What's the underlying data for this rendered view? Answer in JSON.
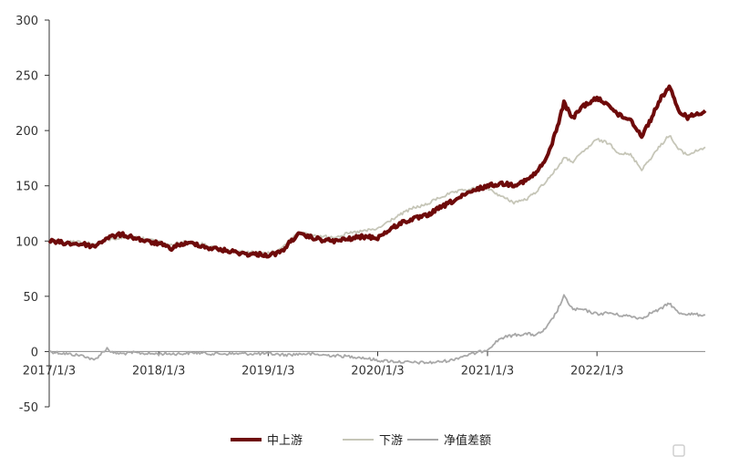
{
  "chart_data": {
    "type": "line",
    "title": "",
    "xlabel": "",
    "ylabel": "",
    "ylim": [
      -50,
      300
    ],
    "yticks": [
      -50,
      0,
      50,
      100,
      150,
      200,
      250,
      300
    ],
    "ytick_labels": [
      "-50",
      "0",
      "50",
      "100",
      "150",
      "200",
      "250",
      "300"
    ],
    "xlim": [
      "2017/1/3",
      "2022/12/30"
    ],
    "xticks": [
      "2017/1/3",
      "2018/1/3",
      "2019/1/3",
      "2020/1/3",
      "2021/1/3",
      "2022/1/3"
    ],
    "grid": false,
    "legend_position": "bottom",
    "series": [
      {
        "name": "中上游",
        "color": "#6e0a0a",
        "width": 4,
        "x": [
          "2017/1/3",
          "2017/3/1",
          "2017/5/1",
          "2017/6/1",
          "2017/7/15",
          "2017/9/1",
          "2017/10/15",
          "2017/12/1",
          "2018/1/3",
          "2018/2/10",
          "2018/3/15",
          "2018/5/1",
          "2018/6/15",
          "2018/8/1",
          "2018/9/15",
          "2018/11/1",
          "2018/12/15",
          "2019/1/3",
          "2019/2/15",
          "2019/4/10",
          "2019/5/15",
          "2019/7/1",
          "2019/8/15",
          "2019/10/1",
          "2019/11/15",
          "2020/1/3",
          "2020/2/10",
          "2020/3/25",
          "2020/5/1",
          "2020/6/15",
          "2020/7/15",
          "2020/9/1",
          "2020/10/15",
          "2020/12/1",
          "2021/1/3",
          "2021/2/20",
          "2021/4/1",
          "2021/5/15",
          "2021/6/15",
          "2021/7/20",
          "2021/8/20",
          "2021/9/15",
          "2021/10/15",
          "2021/11/15",
          "2022/1/3",
          "2022/2/15",
          "2022/3/15",
          "2022/4/25",
          "2022/6/1",
          "2022/7/1",
          "2022/8/1",
          "2022/9/1",
          "2022/10/1",
          "2022/11/1",
          "2022/12/30"
        ],
        "y": [
          100,
          98,
          97,
          95,
          103,
          106,
          103,
          99,
          98,
          93,
          97,
          98,
          94,
          92,
          90,
          88,
          88,
          87,
          90,
          106,
          104,
          101,
          100,
          102,
          104,
          103,
          110,
          117,
          120,
          123,
          128,
          135,
          141,
          147,
          150,
          152,
          151,
          155,
          162,
          175,
          200,
          225,
          211,
          222,
          229,
          223,
          214,
          210,
          195,
          210,
          228,
          240,
          218,
          212,
          218
        ]
      },
      {
        "name": "下游",
        "color": "#c6c6b8",
        "width": 1.8,
        "x": [
          "2017/1/3",
          "2017/3/1",
          "2017/5/1",
          "2017/6/1",
          "2017/7/15",
          "2017/9/1",
          "2017/10/15",
          "2017/12/1",
          "2018/1/3",
          "2018/2/10",
          "2018/3/15",
          "2018/5/1",
          "2018/6/15",
          "2018/8/1",
          "2018/9/15",
          "2018/11/1",
          "2018/12/15",
          "2019/1/3",
          "2019/2/15",
          "2019/4/10",
          "2019/5/15",
          "2019/7/1",
          "2019/8/15",
          "2019/10/1",
          "2019/11/15",
          "2020/1/3",
          "2020/2/10",
          "2020/3/25",
          "2020/5/1",
          "2020/6/15",
          "2020/7/15",
          "2020/9/1",
          "2020/10/15",
          "2020/12/1",
          "2021/1/3",
          "2021/2/20",
          "2021/4/1",
          "2021/5/15",
          "2021/6/15",
          "2021/7/20",
          "2021/8/20",
          "2021/9/15",
          "2021/10/15",
          "2021/11/15",
          "2022/1/3",
          "2022/2/15",
          "2022/3/15",
          "2022/4/25",
          "2022/6/1",
          "2022/7/1",
          "2022/8/1",
          "2022/9/1",
          "2022/10/1",
          "2022/11/1",
          "2022/12/30"
        ],
        "y": [
          100,
          99,
          99,
          97,
          101,
          103,
          104,
          101,
          100,
          96,
          99,
          99,
          96,
          93,
          91,
          90,
          89,
          89,
          93,
          108,
          106,
          104,
          104,
          107,
          109,
          111,
          118,
          125,
          130,
          133,
          138,
          143,
          146,
          148,
          148,
          140,
          135,
          138,
          145,
          155,
          165,
          175,
          172,
          180,
          192,
          188,
          180,
          178,
          165,
          175,
          186,
          196,
          183,
          178,
          185
        ]
      },
      {
        "name": "净值差额",
        "color": "#a8a8a8",
        "width": 1.8,
        "x": [
          "2017/1/3",
          "2017/3/1",
          "2017/5/1",
          "2017/6/1",
          "2017/7/15",
          "2017/8/1",
          "2017/9/1",
          "2017/10/15",
          "2017/12/1",
          "2018/1/3",
          "2018/3/15",
          "2018/5/1",
          "2018/7/1",
          "2018/9/1",
          "2018/11/1",
          "2019/1/3",
          "2019/3/1",
          "2019/5/1",
          "2019/7/1",
          "2019/9/1",
          "2019/11/1",
          "2020/1/3",
          "2020/3/1",
          "2020/5/1",
          "2020/7/1",
          "2020/9/1",
          "2020/10/15",
          "2020/12/1",
          "2021/1/3",
          "2021/2/15",
          "2021/4/1",
          "2021/5/15",
          "2021/6/15",
          "2021/7/15",
          "2021/8/20",
          "2021/9/15",
          "2021/10/15",
          "2021/11/15",
          "2022/1/3",
          "2022/2/15",
          "2022/3/15",
          "2022/4/25",
          "2022/6/1",
          "2022/7/1",
          "2022/8/1",
          "2022/9/1",
          "2022/10/1",
          "2022/11/1",
          "2022/12/30"
        ],
        "y": [
          0,
          -2,
          -4,
          -8,
          3,
          -1,
          -2,
          -1,
          -2,
          -2,
          -2,
          -1,
          -2,
          -2,
          -2,
          -2,
          -3,
          -2,
          -3,
          -4,
          -5,
          -8,
          -9,
          -10,
          -10,
          -8,
          -4,
          -1,
          2,
          12,
          15,
          16,
          15,
          20,
          35,
          50,
          38,
          38,
          34,
          35,
          33,
          32,
          30,
          35,
          38,
          44,
          35,
          34,
          33
        ]
      }
    ]
  }
}
